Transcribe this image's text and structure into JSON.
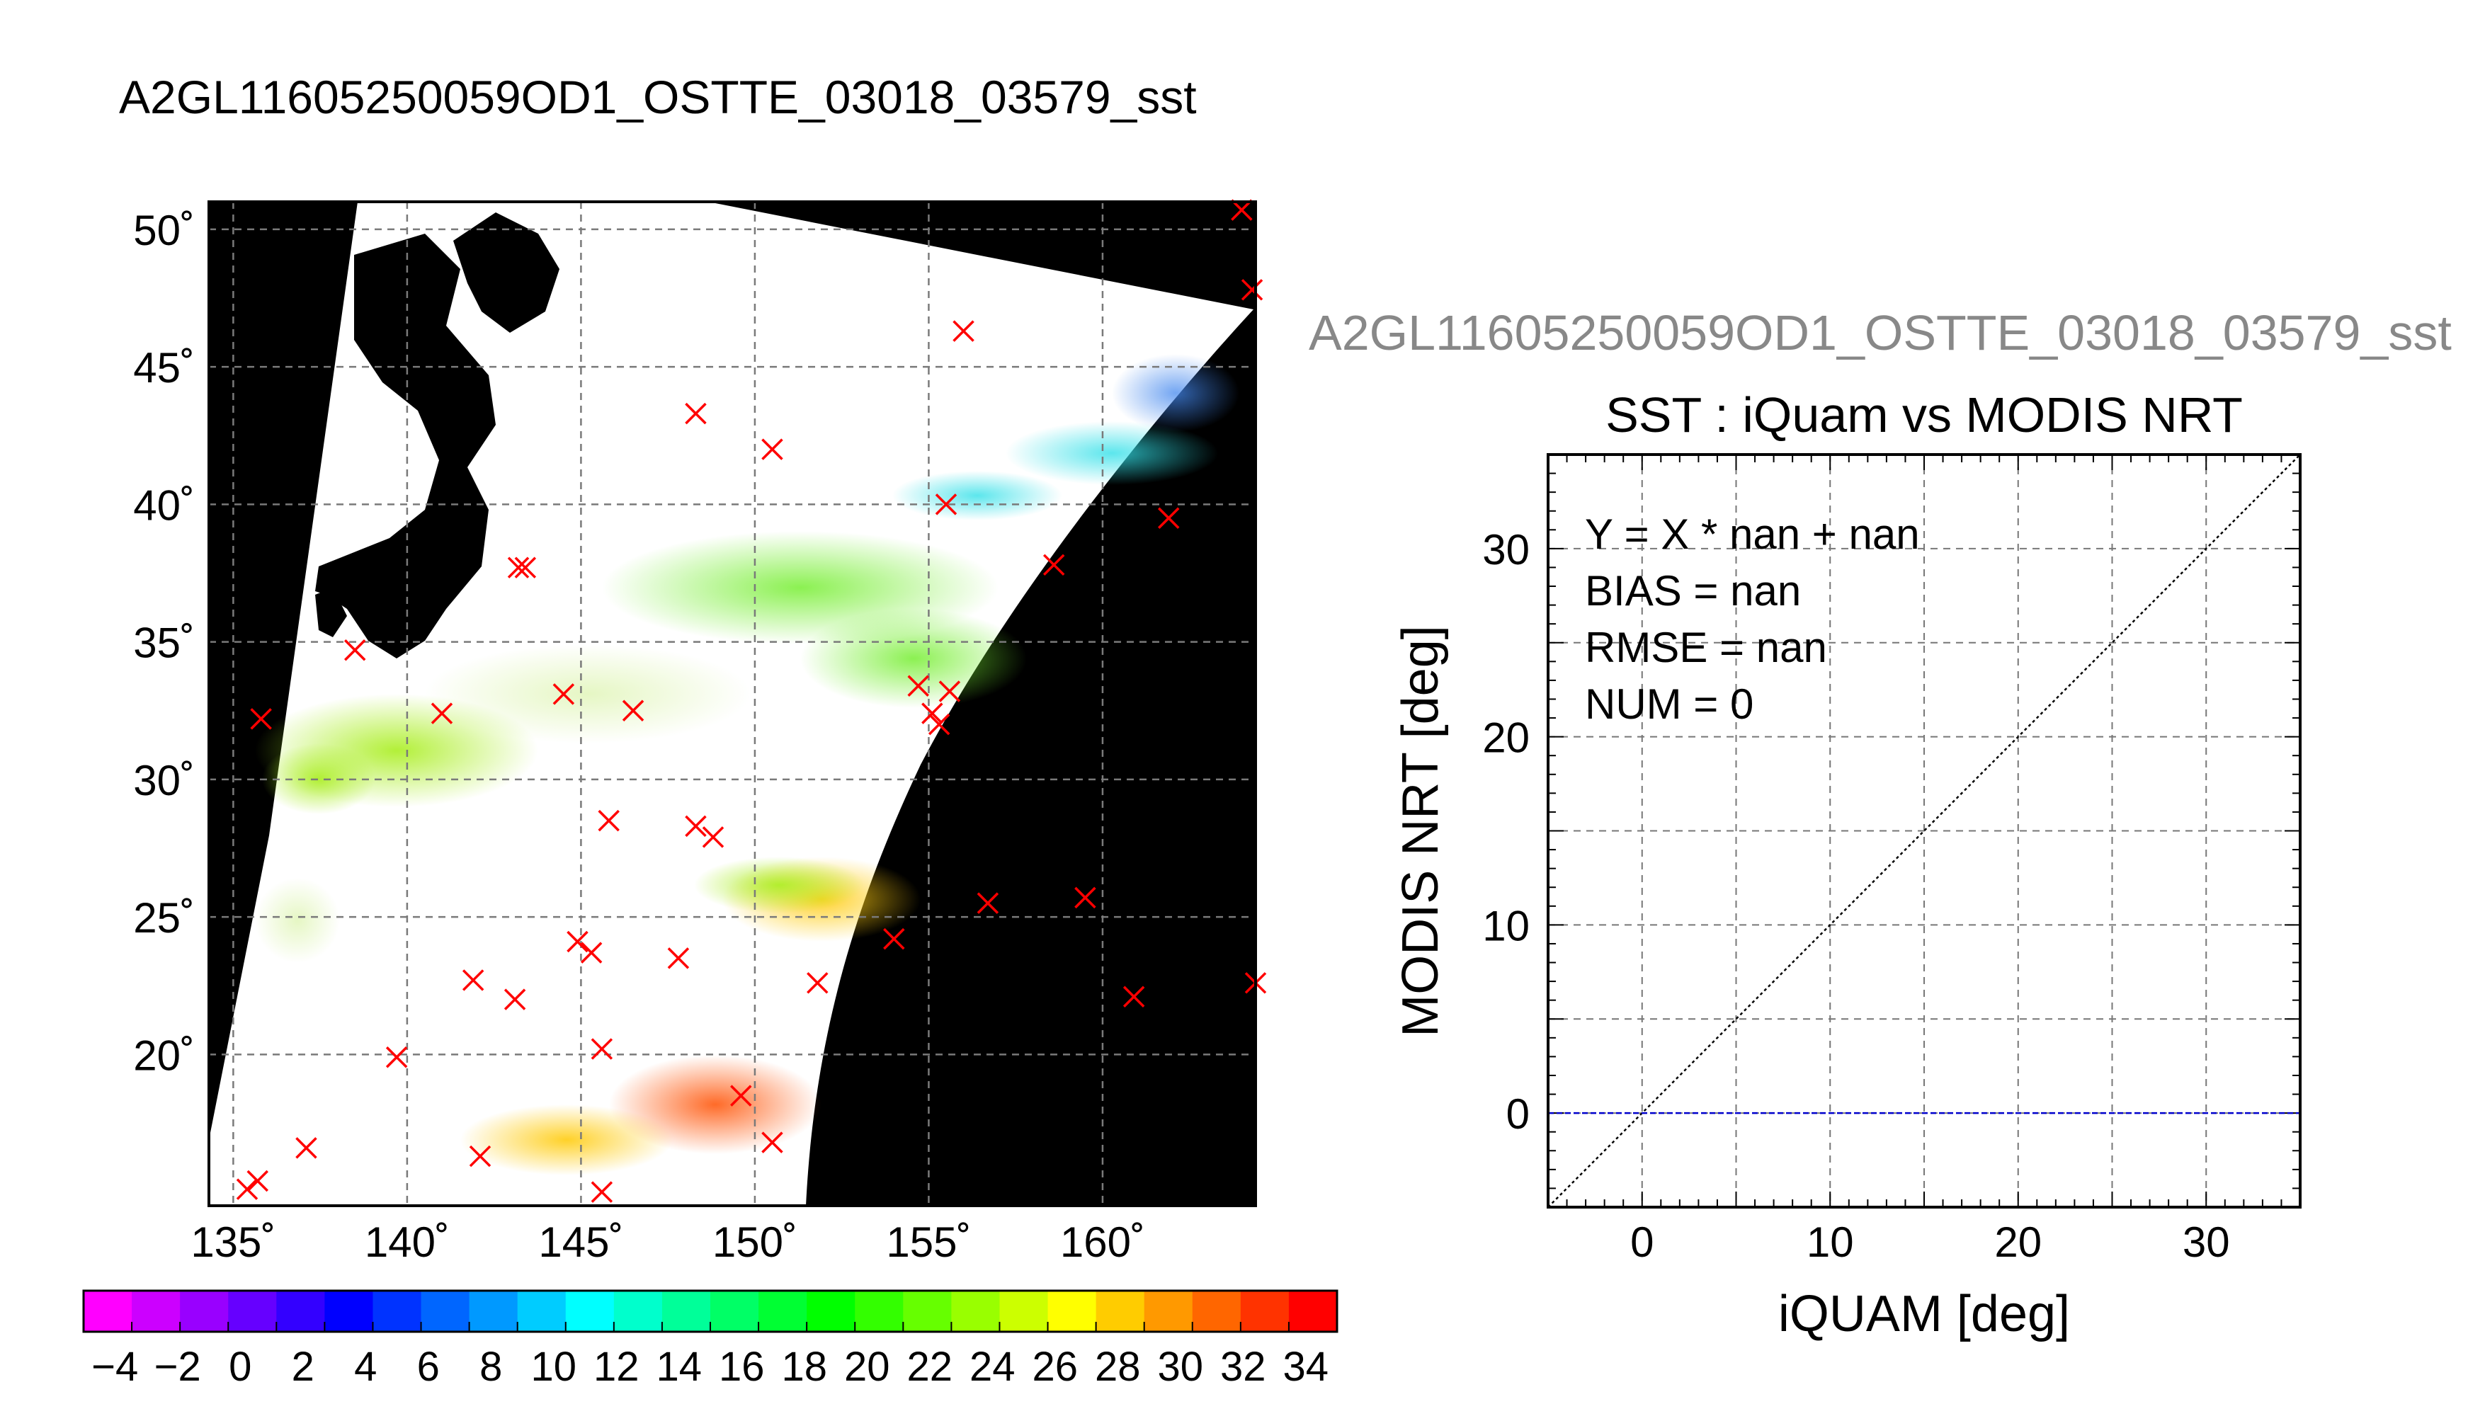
{
  "page_title": "A2GL11605250059OD1_OSTTE_03018_03579_sst",
  "map": {
    "lat_ticks": [
      "50˚",
      "45˚",
      "40˚",
      "35˚",
      "30˚",
      "25˚",
      "20˚"
    ],
    "lon_ticks": [
      "135˚",
      "140˚",
      "145˚",
      "150˚",
      "155˚",
      "160˚"
    ],
    "lat_values": [
      50,
      45,
      40,
      35,
      30,
      25,
      20
    ],
    "lon_values": [
      135,
      140,
      145,
      150,
      155,
      160
    ],
    "lon_range": [
      134.3,
      164.4
    ],
    "lat_range": [
      14.5,
      51.0
    ],
    "buoy_marker_color": "#ff0000",
    "buoys": [
      [
        164,
        50.7
      ],
      [
        164.3,
        47.8
      ],
      [
        156,
        46.3
      ],
      [
        148.3,
        43.3
      ],
      [
        150.5,
        42.0
      ],
      [
        155.5,
        40.0
      ],
      [
        161.9,
        39.5
      ],
      [
        158.6,
        37.8
      ],
      [
        143.2,
        37.7
      ],
      [
        143.4,
        37.7
      ],
      [
        138.5,
        34.7
      ],
      [
        144.5,
        33.1
      ],
      [
        146.5,
        32.5
      ],
      [
        141.0,
        32.4
      ],
      [
        135.8,
        32.2
      ],
      [
        154.7,
        33.4
      ],
      [
        155.6,
        33.2
      ],
      [
        155.1,
        32.4
      ],
      [
        155.3,
        32.0
      ],
      [
        145.8,
        28.5
      ],
      [
        148.3,
        28.3
      ],
      [
        148.8,
        27.9
      ],
      [
        156.7,
        25.5
      ],
      [
        159.5,
        25.7
      ],
      [
        154.0,
        24.2
      ],
      [
        144.9,
        24.1
      ],
      [
        145.3,
        23.7
      ],
      [
        147.8,
        23.5
      ],
      [
        141.9,
        22.7
      ],
      [
        143.1,
        22.0
      ],
      [
        151.8,
        22.6
      ],
      [
        160.9,
        22.1
      ],
      [
        164.4,
        22.6
      ],
      [
        139.7,
        19.9
      ],
      [
        145.6,
        20.2
      ],
      [
        149.6,
        18.5
      ],
      [
        150.5,
        16.8
      ],
      [
        137.1,
        16.6
      ],
      [
        142.1,
        16.3
      ],
      [
        135.7,
        15.4
      ],
      [
        135.4,
        15.1
      ],
      [
        145.6,
        15.0
      ]
    ]
  },
  "colorbar": {
    "tick_labels": [
      "−4",
      "−2",
      "0",
      "2",
      "4",
      "6",
      "8",
      "10",
      "12",
      "14",
      "16",
      "18",
      "20",
      "22",
      "24",
      "26",
      "28",
      "30",
      "32",
      "34"
    ],
    "min": -5,
    "max": 35,
    "step": 2,
    "colors": [
      "#ff00ff",
      "#cc00ff",
      "#9900ff",
      "#6600ff",
      "#3300ff",
      "#0000ff",
      "#0033ff",
      "#0066ff",
      "#0099ff",
      "#00ccff",
      "#00ffff",
      "#00ffcc",
      "#00ff99",
      "#00ff66",
      "#00ff33",
      "#00ff00",
      "#33ff00",
      "#66ff00",
      "#99ff00",
      "#ccff00",
      "#ffff00",
      "#ffcc00",
      "#ff9900",
      "#ff6600",
      "#ff3300",
      "#ff0000"
    ]
  },
  "right_title": "A2GL11605250059OD1_OSTTE_03018_03579_sst",
  "chart_data": {
    "type": "scatter",
    "title": "SST : iQuam vs MODIS NRT",
    "xlabel": "iQUAM [deg]",
    "ylabel": "MODIS NRT [deg]",
    "xlim": [
      -5,
      35
    ],
    "ylim": [
      -5,
      35
    ],
    "x_ticks": [
      0,
      10,
      20,
      30
    ],
    "y_ticks": [
      0,
      10,
      20,
      30
    ],
    "grid": true,
    "points": [],
    "reference_lines": [
      {
        "label": "1:1",
        "style": "dotted",
        "color": "#000000"
      },
      {
        "label": "y=0",
        "style": "dashed",
        "color": "#0000cc"
      }
    ],
    "annotations": [
      "Y = X * nan + nan",
      "BIAS = nan",
      "RMSE = nan",
      "NUM = 0"
    ]
  }
}
